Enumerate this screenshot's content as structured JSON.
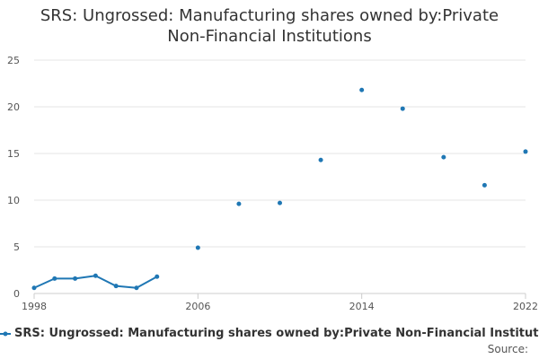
{
  "title_line1": "SRS: Ungrossed: Manufacturing shares owned by:Private",
  "title_line2": "Non-Financial Institutions",
  "legend_label": "SRS: Ungrossed: Manufacturing shares owned by:Private Non-Financial Institutions",
  "source_label": "Source:",
  "colors": {
    "series": "#1f77b4",
    "grid": "#e6e6e6",
    "axis_text": "#555555"
  },
  "chart_data": {
    "type": "line",
    "title": "SRS: Ungrossed: Manufacturing shares owned by:Private Non-Financial Institutions",
    "xlabel": "",
    "ylabel": "",
    "xlim": [
      1998,
      2022
    ],
    "ylim": [
      0,
      25
    ],
    "x_ticks": [
      1998,
      2006,
      2014,
      2022
    ],
    "y_ticks": [
      0,
      5,
      10,
      15,
      20,
      25
    ],
    "grid": true,
    "legend": "bottom",
    "series": [
      {
        "name": "SRS: Ungrossed: Manufacturing shares owned by:Private Non-Financial Institutions",
        "points": [
          {
            "x": 1998,
            "y": 0.6
          },
          {
            "x": 1999,
            "y": 1.6
          },
          {
            "x": 2000,
            "y": 1.6
          },
          {
            "x": 2001,
            "y": 1.9
          },
          {
            "x": 2002,
            "y": 0.8
          },
          {
            "x": 2003,
            "y": 0.6
          },
          {
            "x": 2004,
            "y": 1.8
          },
          {
            "x": 2006,
            "y": 4.9
          },
          {
            "x": 2008,
            "y": 9.6
          },
          {
            "x": 2010,
            "y": 9.7
          },
          {
            "x": 2012,
            "y": 14.3
          },
          {
            "x": 2014,
            "y": 21.8
          },
          {
            "x": 2016,
            "y": 19.8
          },
          {
            "x": 2018,
            "y": 14.6
          },
          {
            "x": 2020,
            "y": 11.6
          },
          {
            "x": 2022,
            "y": 15.2
          }
        ]
      }
    ]
  }
}
